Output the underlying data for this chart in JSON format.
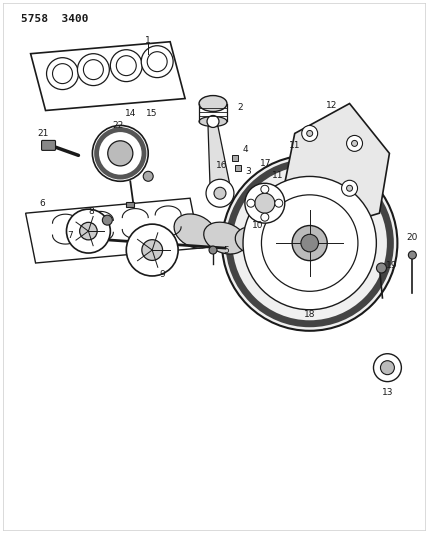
{
  "title": "5758  3400",
  "bg_color": "#ffffff",
  "line_color": "#1a1a1a",
  "fig_width": 4.28,
  "fig_height": 5.33,
  "dpi": 100
}
